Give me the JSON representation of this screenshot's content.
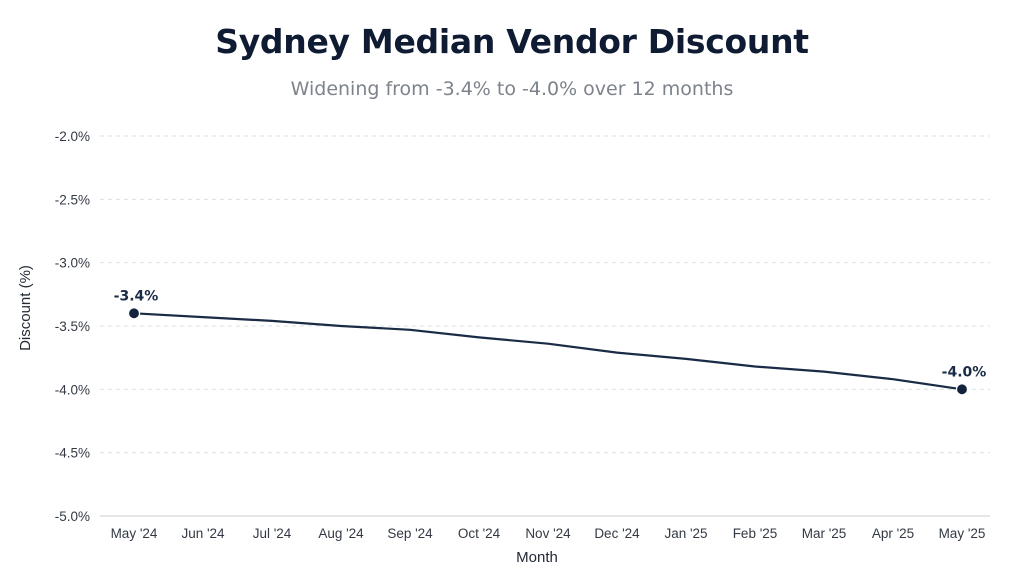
{
  "chart_data": {
    "type": "line",
    "title": "Sydney Median Vendor Discount",
    "subtitle": "Widening from -3.4% to -4.0% over 12 months",
    "xlabel": "Month",
    "ylabel": "Discount (%)",
    "categories": [
      "May '24",
      "Jun '24",
      "Jul '24",
      "Aug '24",
      "Sep '24",
      "Oct '24",
      "Nov '24",
      "Dec '24",
      "Jan '25",
      "Feb '25",
      "Mar '25",
      "Apr '25",
      "May '25"
    ],
    "series": [
      {
        "values": [
          -3.4,
          -3.43,
          -3.46,
          -3.5,
          -3.53,
          -3.59,
          -3.64,
          -3.71,
          -3.76,
          -3.82,
          -3.86,
          -3.92,
          -4.0
        ]
      }
    ],
    "ylim": [
      -5.0,
      -2.0
    ],
    "yticks": [
      -2.0,
      -2.5,
      -3.0,
      -3.5,
      -4.0,
      -4.5,
      -5.0
    ],
    "ytick_labels": [
      "-2.0%",
      "-2.5%",
      "-3.0%",
      "-3.5%",
      "-4.0%",
      "-4.5%",
      "-5.0%"
    ],
    "grid": true,
    "color": "#1a2b45",
    "annotations": [
      {
        "index": 0,
        "text": "-3.4%"
      },
      {
        "index": 12,
        "text": "-4.0%"
      }
    ]
  }
}
